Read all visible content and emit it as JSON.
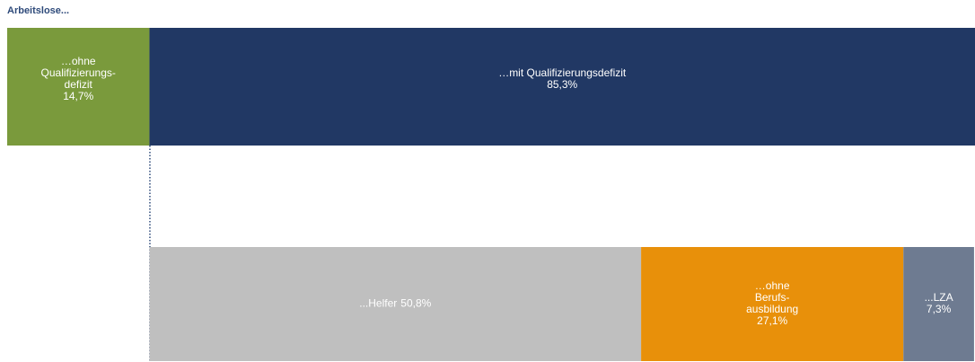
{
  "chart_data": {
    "type": "bar",
    "title": "Arbeitslose...",
    "xlim": [
      0,
      100
    ],
    "rows": [
      {
        "segments": [
          {
            "name": [
              "…ohne",
              "Qualifizierungs-",
              "defizit"
            ],
            "value": 14.7,
            "value_label": "14,7%",
            "color": "#7a9a3c"
          },
          {
            "name": [
              "…mit Qualifizierungsdefizit"
            ],
            "value": 85.3,
            "value_label": "85,3%",
            "color": "#213864"
          }
        ]
      },
      {
        "segments": [
          {
            "name": [
              "...Helfer"
            ],
            "value": 50.8,
            "value_label": "50,8%",
            "color": "#bfbfbf",
            "inline": true
          },
          {
            "name": [
              "…ohne",
              "Berufs-",
              "ausbildung"
            ],
            "value": 27.1,
            "value_label": "27,1%",
            "color": "#e8900a"
          },
          {
            "name": [
              "...LZA"
            ],
            "value": 7.3,
            "value_label": "7,3%",
            "color": "#6e7b91"
          }
        ]
      }
    ]
  }
}
